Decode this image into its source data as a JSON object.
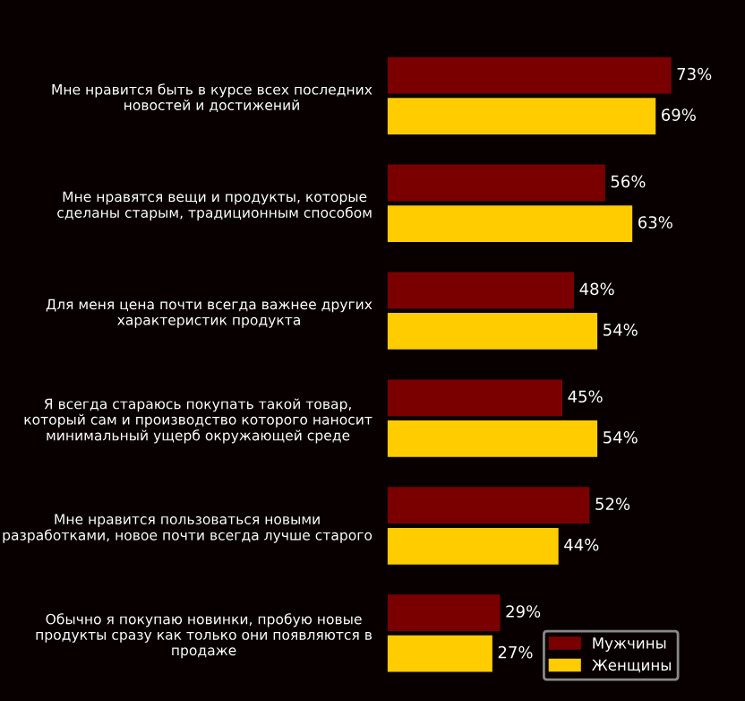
{
  "chart_data": {
    "type": "bar",
    "orientation": "horizontal",
    "categories": [
      "Мне нравится быть в курсе всех последних новостей и достижений",
      "Мне нравятся вещи и продукты, которые сделаны старым, традиционным способом",
      "Для меня цена почти всегда важнее других характеристик продукта",
      "Я всегда стараюсь покупать такой товар, который сам и производство которого наносит минимальный ущерб окружающей среде",
      "Мне нравится пользоваться новыми разработками, новое почти всегда лучше старого",
      "Обычно я покупаю новинки, пробую новые продукты сразу как только они появляются в продаже"
    ],
    "series": [
      {
        "name": "Мужчины",
        "color": "#7a0000",
        "values": [
          73,
          56,
          48,
          45,
          52,
          29
        ],
        "value_labels": [
          "73%",
          "56%",
          "48%",
          "45%",
          "52%",
          "29%"
        ]
      },
      {
        "name": "Женщины",
        "color": "#ffcc00",
        "values": [
          69,
          63,
          54,
          54,
          44,
          27
        ],
        "value_labels": [
          "69%",
          "63%",
          "54%",
          "54%",
          "44%",
          "27%"
        ]
      }
    ],
    "legend": "bottom right",
    "grid": false,
    "tick_labels": "y"
  }
}
